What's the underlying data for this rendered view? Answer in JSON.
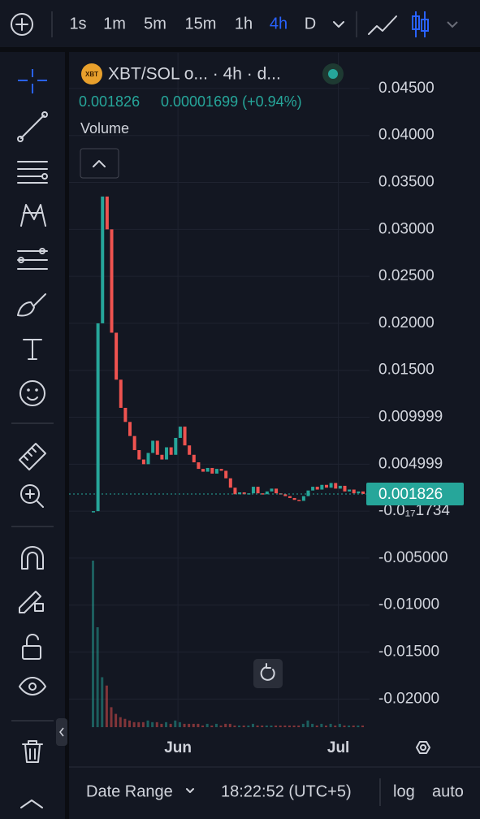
{
  "toolbar": {
    "intervals": [
      "1s",
      "1m",
      "5m",
      "15m",
      "1h",
      "4h",
      "D"
    ],
    "active_interval": 5
  },
  "legend": {
    "logo": "XBT",
    "symbol": "XBT/SOL o... · 4h · d...",
    "price": "0.001826",
    "change": "0.00001699 (+0.94%)",
    "volume_label": "Volume"
  },
  "chart": {
    "type": "candle",
    "values": [
      0.0,
      0.02,
      0.0335,
      0.03,
      0.019,
      0.014,
      0.011,
      0.0095,
      0.008,
      0.0065,
      0.0055,
      0.005,
      0.0062,
      0.0075,
      0.006,
      0.0055,
      0.0068,
      0.006,
      0.0078,
      0.009,
      0.007,
      0.006,
      0.0052,
      0.0045,
      0.0042,
      0.0046,
      0.004,
      0.0045,
      0.0043,
      0.0035,
      0.0025,
      0.0018,
      0.002,
      0.0018,
      0.0019,
      0.0026,
      0.0019,
      0.0018,
      0.0021,
      0.0024,
      0.0019,
      0.0018,
      0.0016,
      0.0014,
      0.0012,
      0.0011,
      0.0016,
      0.0022,
      0.0026,
      0.0023,
      0.0028,
      0.0025,
      0.003,
      0.0024,
      0.0027,
      0.0021,
      0.0023,
      0.0019,
      0.0021,
      0.001826
    ],
    "volume": [
      100,
      60,
      30,
      25,
      12,
      8,
      6,
      5,
      4,
      3,
      3,
      3,
      4,
      3,
      3,
      2,
      3,
      2,
      4,
      3,
      2,
      2,
      2,
      2,
      1,
      2,
      1,
      2,
      1,
      2,
      2,
      1,
      1,
      1,
      1,
      2,
      1,
      1,
      1,
      1,
      1,
      1,
      1,
      1,
      1,
      1,
      2,
      4,
      2,
      1,
      2,
      1,
      2,
      1,
      2,
      1,
      1,
      1,
      1,
      1
    ],
    "up_color": "#26a69a",
    "down_color": "#ef5350",
    "ylim": [
      -0.023,
      0.0488
    ],
    "yticks": [
      {
        "value": 0.045,
        "label": "0.04500"
      },
      {
        "value": 0.04,
        "label": "0.04000"
      },
      {
        "value": 0.035,
        "label": "0.03500"
      },
      {
        "value": 0.03,
        "label": "0.03000"
      },
      {
        "value": 0.025,
        "label": "0.02500"
      },
      {
        "value": 0.02,
        "label": "0.02000"
      },
      {
        "value": 0.015,
        "label": "0.01500"
      },
      {
        "value": 0.009999,
        "label": "0.009999"
      },
      {
        "value": 0.004999,
        "label": "0.004999"
      },
      {
        "value": -1.734e-18,
        "label": "-0.0₁₇1734"
      },
      {
        "value": -0.005,
        "label": "-0.005000"
      },
      {
        "value": -0.01,
        "label": "-0.01000"
      },
      {
        "value": -0.015,
        "label": "-0.01500"
      },
      {
        "value": -0.02,
        "label": "-0.02000"
      }
    ],
    "xticks": [
      {
        "index": 18.5,
        "label": "Jun"
      },
      {
        "index": 53.6,
        "label": "Jul"
      }
    ],
    "last_price": 0.001826
  },
  "footer": {
    "date_range": "Date Range",
    "time": "18:22:52 (UTC+5)",
    "log": "log",
    "auto": "auto"
  }
}
